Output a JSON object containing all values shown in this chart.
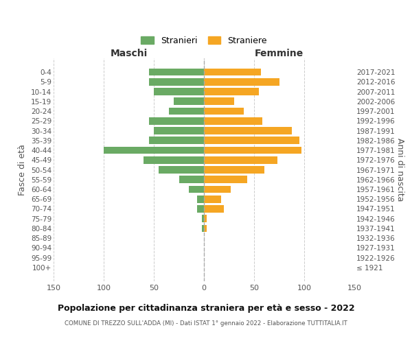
{
  "age_groups": [
    "100+",
    "95-99",
    "90-94",
    "85-89",
    "80-84",
    "75-79",
    "70-74",
    "65-69",
    "60-64",
    "55-59",
    "50-54",
    "45-49",
    "40-44",
    "35-39",
    "30-34",
    "25-29",
    "20-24",
    "15-19",
    "10-14",
    "5-9",
    "0-4"
  ],
  "birth_years": [
    "≤ 1921",
    "1922-1926",
    "1927-1931",
    "1932-1936",
    "1937-1941",
    "1942-1946",
    "1947-1951",
    "1952-1956",
    "1957-1961",
    "1962-1966",
    "1967-1971",
    "1972-1976",
    "1977-1981",
    "1982-1986",
    "1987-1991",
    "1992-1996",
    "1997-2001",
    "2002-2006",
    "2007-2011",
    "2012-2016",
    "2017-2021"
  ],
  "maschi": [
    0,
    0,
    0,
    0,
    2,
    2,
    7,
    7,
    15,
    25,
    45,
    60,
    100,
    55,
    50,
    55,
    35,
    30,
    50,
    55,
    55
  ],
  "femmine": [
    0,
    0,
    0,
    0,
    3,
    3,
    20,
    17,
    27,
    43,
    60,
    73,
    97,
    95,
    88,
    58,
    40,
    30,
    55,
    75,
    57
  ],
  "color_maschi": "#6aaa64",
  "color_femmine": "#f5a623",
  "title": "Popolazione per cittadinanza straniera per età e sesso - 2022",
  "subtitle": "COMUNE DI TREZZO SULL'ADDA (MI) - Dati ISTAT 1° gennaio 2022 - Elaborazione TUTTITALIA.IT",
  "xlabel_left": "Maschi",
  "xlabel_right": "Femmine",
  "ylabel_left": "Fasce di età",
  "ylabel_right": "Anni di nascita",
  "legend_maschi": "Stranieri",
  "legend_femmine": "Straniere",
  "xlim": 150,
  "background_color": "#ffffff",
  "grid_color": "#cccccc",
  "bar_height": 0.75
}
